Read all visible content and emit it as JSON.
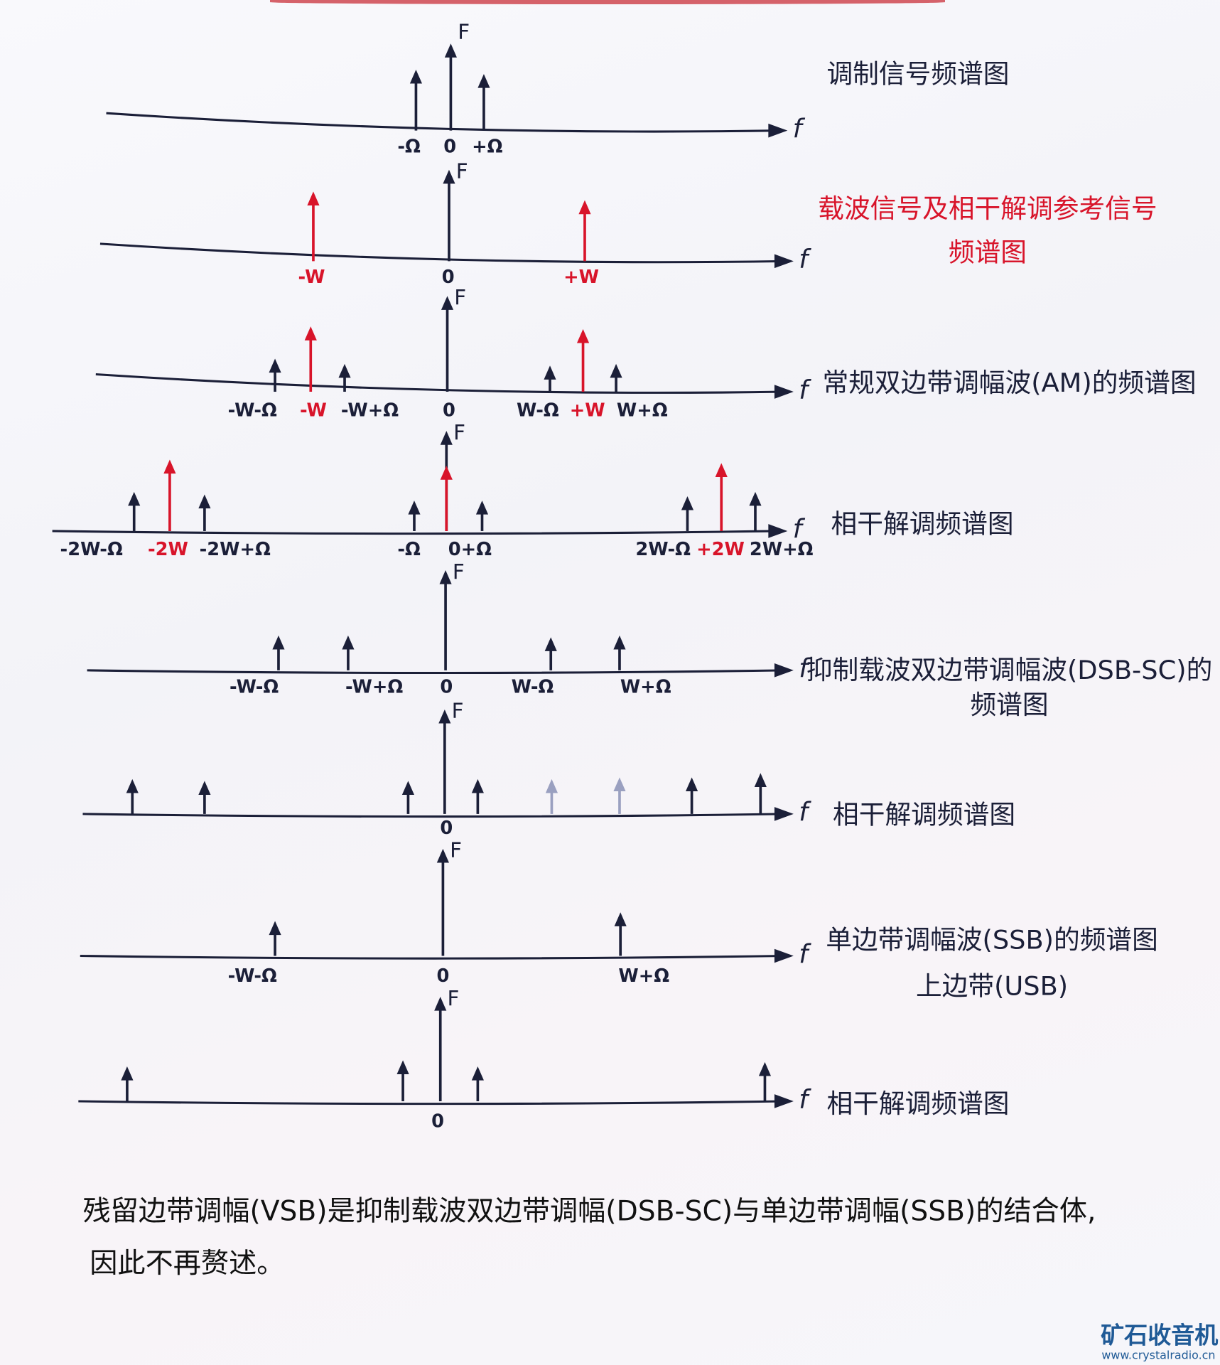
{
  "colors": {
    "ink": "#1b1f38",
    "red": "#d8142a",
    "watermark": "#1f5a96"
  },
  "axis_labels": {
    "vertical": "F",
    "horizontal": "f"
  },
  "panels": [
    {
      "title": [
        "调制信号频谱图"
      ],
      "title_color": "ink",
      "arrows": [
        {
          "at": "-Ω",
          "color": "ink"
        },
        {
          "at": "+Ω",
          "color": "ink"
        }
      ],
      "labels": [
        {
          "text": "-Ω",
          "color": "ink"
        },
        {
          "text": "0",
          "color": "ink"
        },
        {
          "text": "+Ω",
          "color": "ink"
        }
      ]
    },
    {
      "title": [
        "载波信号及相干解调参考信号",
        "频谱图"
      ],
      "title_color": "red",
      "arrows": [
        {
          "at": "-W",
          "color": "red"
        },
        {
          "at": "+W",
          "color": "red"
        }
      ],
      "labels": [
        {
          "text": "-W",
          "color": "red"
        },
        {
          "text": "0",
          "color": "ink"
        },
        {
          "text": "+W",
          "color": "red"
        }
      ]
    },
    {
      "title": [
        "常规双边带调幅波(AM)的频谱图"
      ],
      "title_color": "ink",
      "arrows": [
        {
          "at": "-W-Ω",
          "color": "ink"
        },
        {
          "at": "-W",
          "color": "red"
        },
        {
          "at": "-W+Ω",
          "color": "ink"
        },
        {
          "at": "W-Ω",
          "color": "ink"
        },
        {
          "at": "+W",
          "color": "red"
        },
        {
          "at": "W+Ω",
          "color": "ink"
        }
      ],
      "labels": [
        {
          "text": "-W-Ω",
          "color": "ink"
        },
        {
          "text": "-W",
          "color": "red"
        },
        {
          "text": "-W+Ω",
          "color": "ink"
        },
        {
          "text": "0",
          "color": "ink"
        },
        {
          "text": "W-Ω",
          "color": "ink"
        },
        {
          "text": "+W",
          "color": "red"
        },
        {
          "text": "W+Ω",
          "color": "ink"
        }
      ]
    },
    {
      "title": [
        "相干解调频谱图"
      ],
      "title_color": "ink",
      "arrows": [
        {
          "at": "-2W-Ω",
          "color": "ink"
        },
        {
          "at": "-2W",
          "color": "red"
        },
        {
          "at": "-2W+Ω",
          "color": "ink"
        },
        {
          "at": "-Ω",
          "color": "ink"
        },
        {
          "at": "0",
          "color": "red"
        },
        {
          "at": "+Ω",
          "color": "ink"
        },
        {
          "at": "2W-Ω",
          "color": "ink"
        },
        {
          "at": "+2W",
          "color": "red"
        },
        {
          "at": "2W+Ω",
          "color": "ink"
        }
      ],
      "labels": [
        {
          "text": "-2W-Ω",
          "color": "ink"
        },
        {
          "text": "-2W",
          "color": "red"
        },
        {
          "text": "-2W+Ω",
          "color": "ink"
        },
        {
          "text": "-Ω",
          "color": "ink"
        },
        {
          "text": "0+Ω",
          "color": "ink"
        },
        {
          "text": "2W-Ω",
          "color": "ink"
        },
        {
          "text": "+2W",
          "color": "red"
        },
        {
          "text": "2W+Ω",
          "color": "ink"
        }
      ]
    },
    {
      "title": [
        "抑制载波双边带调幅波(DSB-SC)的",
        "频谱图"
      ],
      "title_color": "ink",
      "arrows": [
        {
          "at": "-W-Ω",
          "color": "ink"
        },
        {
          "at": "-W+Ω",
          "color": "ink"
        },
        {
          "at": "W-Ω",
          "color": "ink"
        },
        {
          "at": "W+Ω",
          "color": "ink"
        }
      ],
      "labels": [
        {
          "text": "-W-Ω",
          "color": "ink"
        },
        {
          "text": "-W+Ω",
          "color": "ink"
        },
        {
          "text": "0",
          "color": "ink"
        },
        {
          "text": "W-Ω",
          "color": "ink"
        },
        {
          "text": "W+Ω",
          "color": "ink"
        }
      ]
    },
    {
      "title": [
        "相干解调频谱图"
      ],
      "title_color": "ink",
      "arrows": [
        {
          "at": "-2W-Ω",
          "color": "ink"
        },
        {
          "at": "-2W+Ω",
          "color": "ink"
        },
        {
          "at": "-Ω",
          "color": "ink"
        },
        {
          "at": "+Ω",
          "color": "ink"
        },
        {
          "at": "W-Ω",
          "color": "faint"
        },
        {
          "at": "W+Ω",
          "color": "faint"
        },
        {
          "at": "2W-Ω",
          "color": "ink"
        },
        {
          "at": "2W+Ω",
          "color": "ink"
        }
      ],
      "labels": [
        {
          "text": "0",
          "color": "ink"
        }
      ]
    },
    {
      "title": [
        "单边带调幅波(SSB)的频谱图",
        "上边带(USB)"
      ],
      "title_color": "ink",
      "arrows": [
        {
          "at": "-W-Ω",
          "color": "ink"
        },
        {
          "at": "W+Ω",
          "color": "ink"
        }
      ],
      "labels": [
        {
          "text": "-W-Ω",
          "color": "ink"
        },
        {
          "text": "0",
          "color": "ink"
        },
        {
          "text": "W+Ω",
          "color": "ink"
        }
      ]
    },
    {
      "title": [
        "相干解调频谱图"
      ],
      "title_color": "ink",
      "arrows": [
        {
          "at": "-2W-Ω",
          "color": "ink"
        },
        {
          "at": "-Ω",
          "color": "ink"
        },
        {
          "at": "+Ω",
          "color": "ink"
        },
        {
          "at": "2W+Ω",
          "color": "ink"
        }
      ],
      "labels": [
        {
          "text": "0",
          "color": "ink"
        }
      ]
    }
  ],
  "note": [
    "残留边带调幅(VSB)是抑制载波双边带调幅(DSB-SC)与单边带调幅(SSB)的结合体,",
    "因此不再赘述。"
  ],
  "watermark": {
    "name": "矿石收音机",
    "url": "www.crystalradio.cn"
  }
}
